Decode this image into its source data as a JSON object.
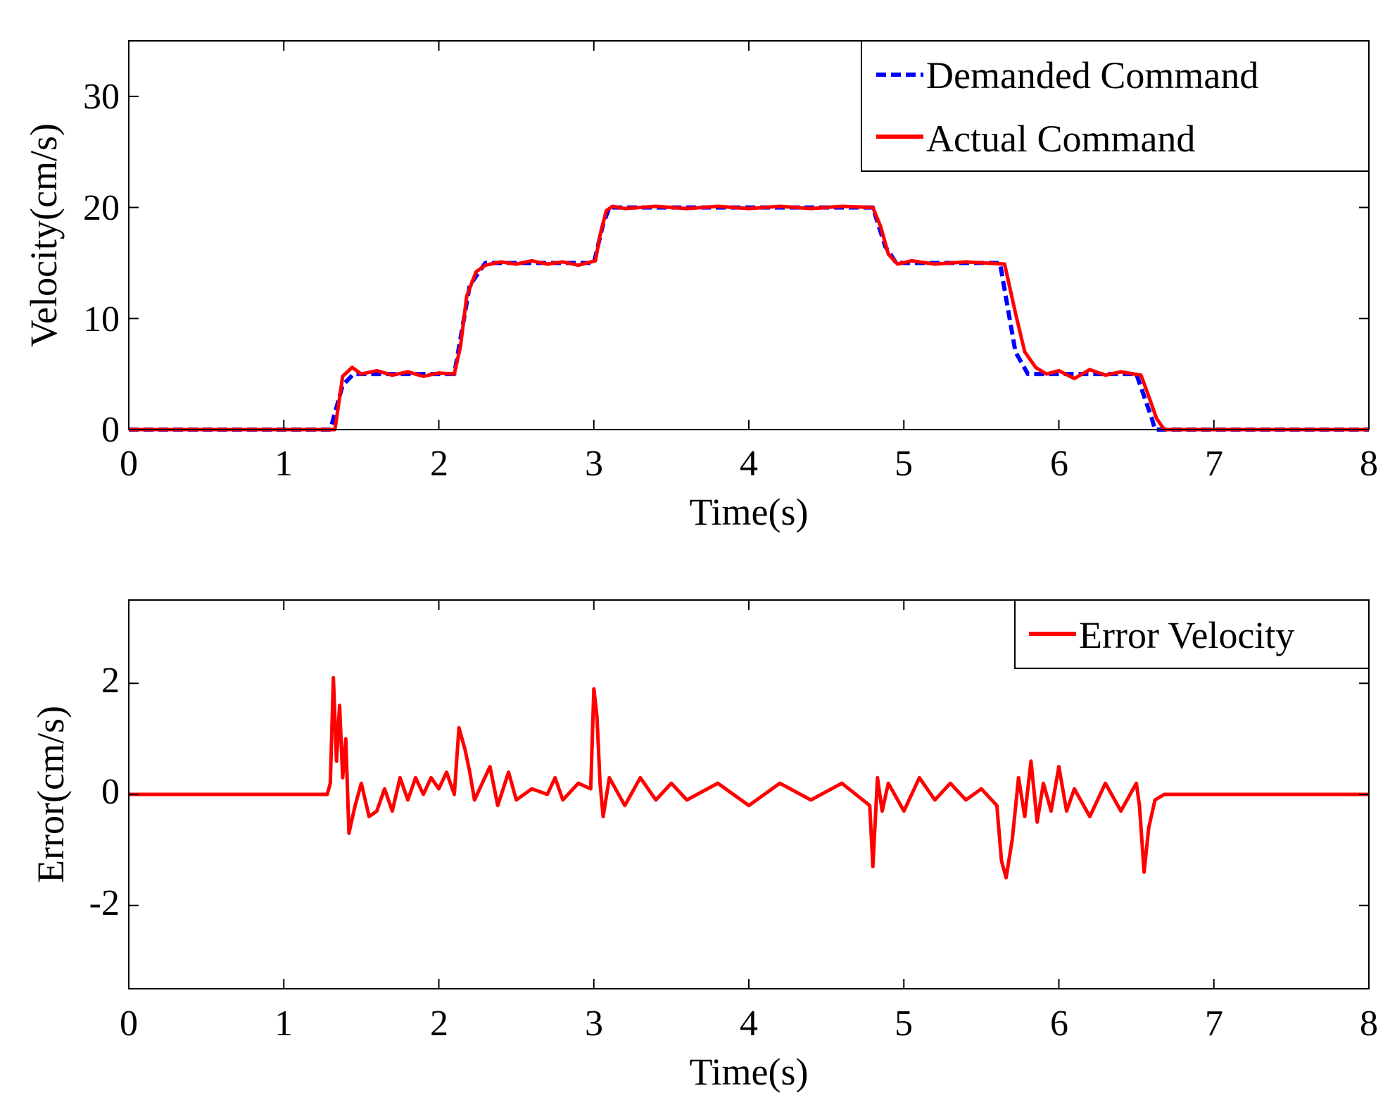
{
  "chart_data": [
    {
      "type": "line",
      "title": "",
      "xlabel": "Time(s)",
      "ylabel": "Velocity(cm/s)",
      "xlim": [
        0,
        8
      ],
      "ylim": [
        0,
        35
      ],
      "xticks": [
        0,
        1,
        2,
        3,
        4,
        5,
        6,
        7,
        8
      ],
      "xtick_labels": [
        "0",
        "1",
        "2",
        "3",
        "4",
        "5",
        "6",
        "7",
        "8"
      ],
      "yticks": [
        0,
        10,
        20,
        30
      ],
      "ytick_labels": [
        "0",
        "10",
        "20",
        "30"
      ],
      "grid": false,
      "legend_position": "top-right",
      "series": [
        {
          "name": "Demanded Command",
          "color": "#0000ff",
          "style": "dashed",
          "x": [
            0,
            1.3,
            1.38,
            1.45,
            2.1,
            2.2,
            2.3,
            3.0,
            3.06,
            3.1,
            4.8,
            4.88,
            4.95,
            5.62,
            5.72,
            5.8,
            6.5,
            6.6,
            6.62,
            8
          ],
          "y": [
            0,
            0,
            4,
            5,
            5,
            13,
            15,
            15,
            18.5,
            20,
            20,
            16.5,
            15,
            15,
            7,
            5,
            5,
            1,
            0,
            0
          ]
        },
        {
          "name": "Actual Command",
          "color": "#ff0000",
          "style": "solid",
          "x": [
            0,
            1.33,
            1.38,
            1.44,
            1.5,
            1.6,
            1.7,
            1.8,
            1.9,
            2.0,
            2.1,
            2.14,
            2.18,
            2.24,
            2.3,
            2.4,
            2.5,
            2.6,
            2.7,
            2.8,
            2.9,
            3.01,
            3.04,
            3.08,
            3.12,
            3.2,
            3.4,
            3.6,
            3.8,
            4.0,
            4.2,
            4.4,
            4.6,
            4.8,
            4.85,
            4.9,
            4.96,
            5.05,
            5.2,
            5.4,
            5.65,
            5.72,
            5.78,
            5.85,
            5.92,
            6.0,
            6.1,
            6.2,
            6.3,
            6.4,
            6.53,
            6.58,
            6.63,
            6.68,
            8
          ],
          "y": [
            0,
            0,
            4.8,
            5.6,
            5.0,
            5.3,
            4.9,
            5.2,
            4.8,
            5.1,
            5.0,
            7.5,
            12.0,
            14.2,
            14.8,
            15.1,
            14.9,
            15.2,
            14.9,
            15.1,
            14.8,
            15.2,
            17.5,
            19.7,
            20.1,
            19.9,
            20.1,
            19.9,
            20.1,
            19.9,
            20.1,
            19.9,
            20.1,
            20.0,
            18.3,
            15.8,
            14.9,
            15.2,
            14.9,
            15.1,
            14.9,
            10.5,
            7.0,
            5.6,
            5.0,
            5.3,
            4.6,
            5.4,
            4.9,
            5.2,
            4.9,
            3.0,
            1.0,
            0,
            0
          ]
        }
      ]
    },
    {
      "type": "line",
      "title": "",
      "xlabel": "Time(s)",
      "ylabel": "Error(cm/s)",
      "xlim": [
        0,
        8
      ],
      "ylim": [
        -3.5,
        3.5
      ],
      "xticks": [
        0,
        1,
        2,
        3,
        4,
        5,
        6,
        7,
        8
      ],
      "xtick_labels": [
        "0",
        "1",
        "2",
        "3",
        "4",
        "5",
        "6",
        "7",
        "8"
      ],
      "yticks": [
        -2,
        0,
        2
      ],
      "ytick_labels": [
        "-2",
        "0",
        "2"
      ],
      "grid": false,
      "legend_position": "top-right",
      "series": [
        {
          "name": "Error Velocity",
          "color": "#ff0000",
          "style": "solid",
          "x": [
            0,
            1.28,
            1.3,
            1.32,
            1.34,
            1.36,
            1.38,
            1.4,
            1.42,
            1.46,
            1.5,
            1.55,
            1.6,
            1.65,
            1.7,
            1.75,
            1.8,
            1.85,
            1.9,
            1.95,
            2.0,
            2.05,
            2.1,
            2.13,
            2.17,
            2.2,
            2.23,
            2.28,
            2.33,
            2.38,
            2.45,
            2.5,
            2.6,
            2.7,
            2.75,
            2.8,
            2.9,
            2.98,
            3.0,
            3.02,
            3.04,
            3.06,
            3.1,
            3.2,
            3.3,
            3.4,
            3.5,
            3.6,
            3.8,
            4.0,
            4.2,
            4.4,
            4.6,
            4.78,
            4.8,
            4.83,
            4.86,
            4.9,
            5.0,
            5.1,
            5.2,
            5.3,
            5.4,
            5.5,
            5.6,
            5.63,
            5.66,
            5.7,
            5.74,
            5.78,
            5.82,
            5.86,
            5.9,
            5.95,
            6.0,
            6.05,
            6.1,
            6.2,
            6.3,
            6.4,
            6.5,
            6.52,
            6.55,
            6.58,
            6.62,
            6.68,
            8
          ],
          "y": [
            0,
            0,
            0.2,
            2.1,
            0.6,
            1.6,
            0.3,
            1.0,
            -0.7,
            -0.2,
            0.2,
            -0.4,
            -0.3,
            0.1,
            -0.3,
            0.3,
            -0.1,
            0.3,
            0,
            0.3,
            0.1,
            0.4,
            0,
            1.2,
            0.8,
            0.4,
            -0.1,
            0.2,
            0.5,
            -0.2,
            0.4,
            -0.1,
            0.1,
            0,
            0.3,
            -0.1,
            0.2,
            0.1,
            1.9,
            1.4,
            0.2,
            -0.4,
            0.3,
            -0.2,
            0.3,
            -0.1,
            0.2,
            -0.1,
            0.2,
            -0.2,
            0.2,
            -0.1,
            0.2,
            -0.2,
            -1.3,
            0.3,
            -0.3,
            0.2,
            -0.3,
            0.3,
            -0.1,
            0.2,
            -0.1,
            0.1,
            -0.2,
            -1.2,
            -1.5,
            -0.8,
            0.3,
            -0.4,
            0.6,
            -0.5,
            0.2,
            -0.3,
            0.5,
            -0.3,
            0.1,
            -0.4,
            0.2,
            -0.3,
            0.2,
            -0.2,
            -1.4,
            -0.6,
            -0.1,
            0,
            0
          ]
        }
      ]
    }
  ]
}
